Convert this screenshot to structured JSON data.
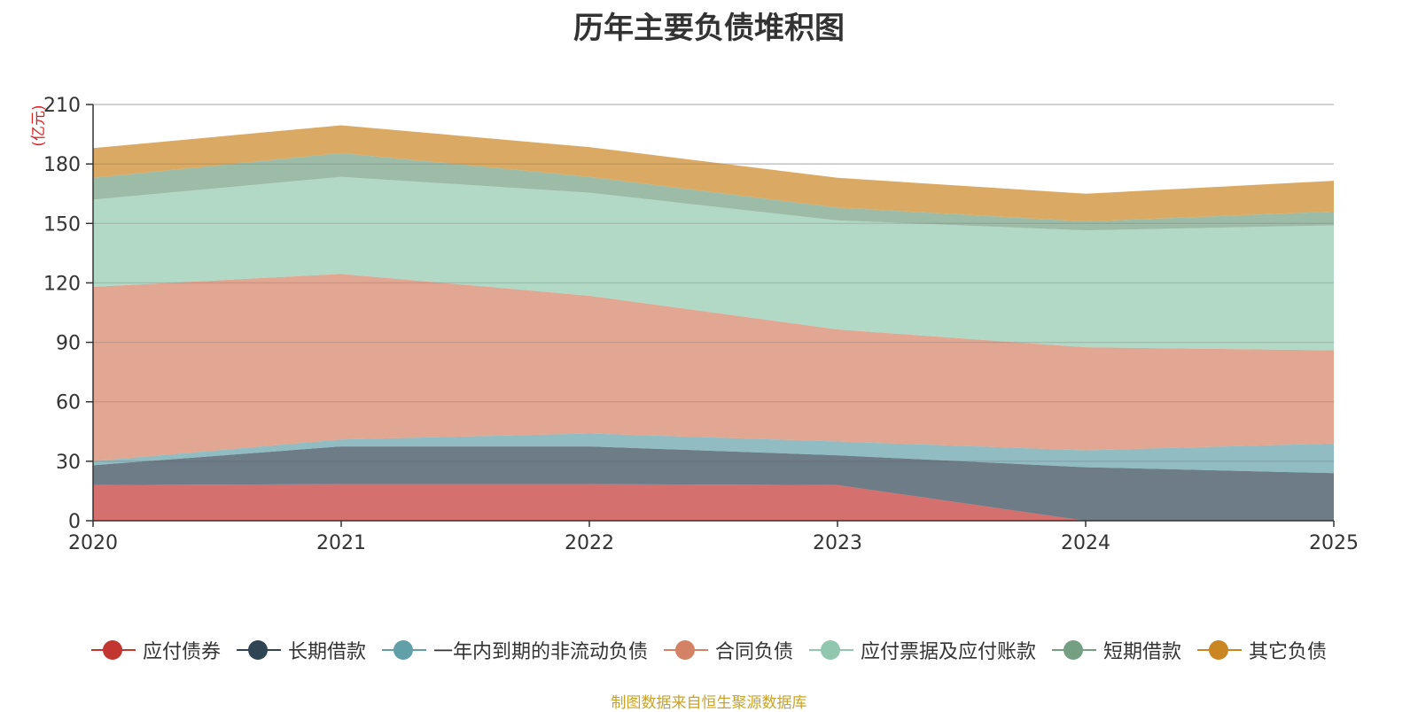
{
  "chart_data": {
    "type": "area",
    "stacked": true,
    "title": "历年主要负债堆积图",
    "ylabel": "(亿元)",
    "xlabel": "",
    "x": [
      "2020",
      "2021",
      "2022",
      "2023",
      "2024",
      "2025"
    ],
    "ylim": [
      0,
      210
    ],
    "yticks": [
      0,
      30,
      60,
      90,
      120,
      150,
      180,
      210
    ],
    "grid": true,
    "legend_position": "bottom",
    "series": [
      {
        "name": "应付债券",
        "color": "#c23531",
        "values": [
          18,
          18.5,
          18.5,
          18,
          0,
          0
        ]
      },
      {
        "name": "长期借款",
        "color": "#2f4554",
        "values": [
          10,
          19,
          19,
          15,
          27,
          24
        ]
      },
      {
        "name": "一年内到期的非流动负债",
        "color": "#61a0a8",
        "values": [
          2,
          3.5,
          6.5,
          7,
          8.5,
          15
        ]
      },
      {
        "name": "合同负债",
        "color": "#d48265",
        "values": [
          88,
          83.5,
          69.5,
          56.5,
          52,
          47
        ]
      },
      {
        "name": "应付票据及应付账款",
        "color": "#91c7ae",
        "values": [
          44,
          49,
          52,
          55,
          59,
          63
        ]
      },
      {
        "name": "短期借款",
        "color": "#749f83",
        "values": [
          11,
          12,
          8,
          6.5,
          4.5,
          7
        ]
      },
      {
        "name": "其它负债",
        "color": "#ca8622",
        "values": [
          15,
          14,
          15,
          15,
          14,
          15.5
        ]
      }
    ]
  },
  "footnote": {
    "text": "制图数据来自恒生聚源数据库",
    "color": "#c9a227"
  }
}
